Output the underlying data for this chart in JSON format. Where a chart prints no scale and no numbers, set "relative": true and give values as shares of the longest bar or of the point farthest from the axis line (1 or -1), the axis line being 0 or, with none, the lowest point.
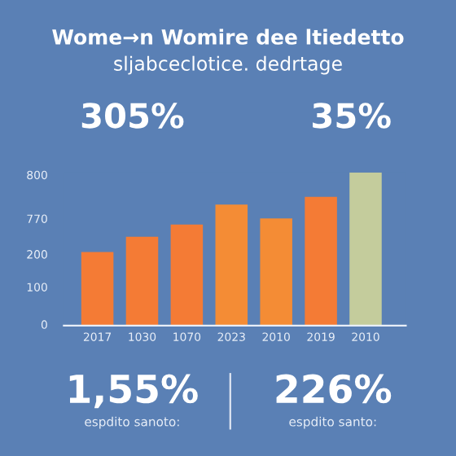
{
  "chart_data": {
    "type": "bar",
    "title": "Wome→n Womire dee ltiedetto",
    "subtitle": "sljabceclotice. dedrtage",
    "categories": [
      "2017",
      "1030",
      "1070",
      "2023",
      "2010",
      "2019",
      "2010"
    ],
    "values": [
      0.48,
      0.58,
      0.66,
      0.79,
      0.7,
      0.84,
      1
    ],
    "colors": [
      "#f47b35",
      "#f47b35",
      "#f47b35",
      "#f48c35",
      "#f48c35",
      "#f47b35",
      "#c4cc9c"
    ],
    "relative": true,
    "grid": false,
    "annotations": [
      "305%",
      "35%",
      "1,55%",
      "226%",
      "espdito sanoto:",
      "espdito santo:",
      "0",
      "100",
      "200",
      "770",
      "800"
    ]
  }
}
